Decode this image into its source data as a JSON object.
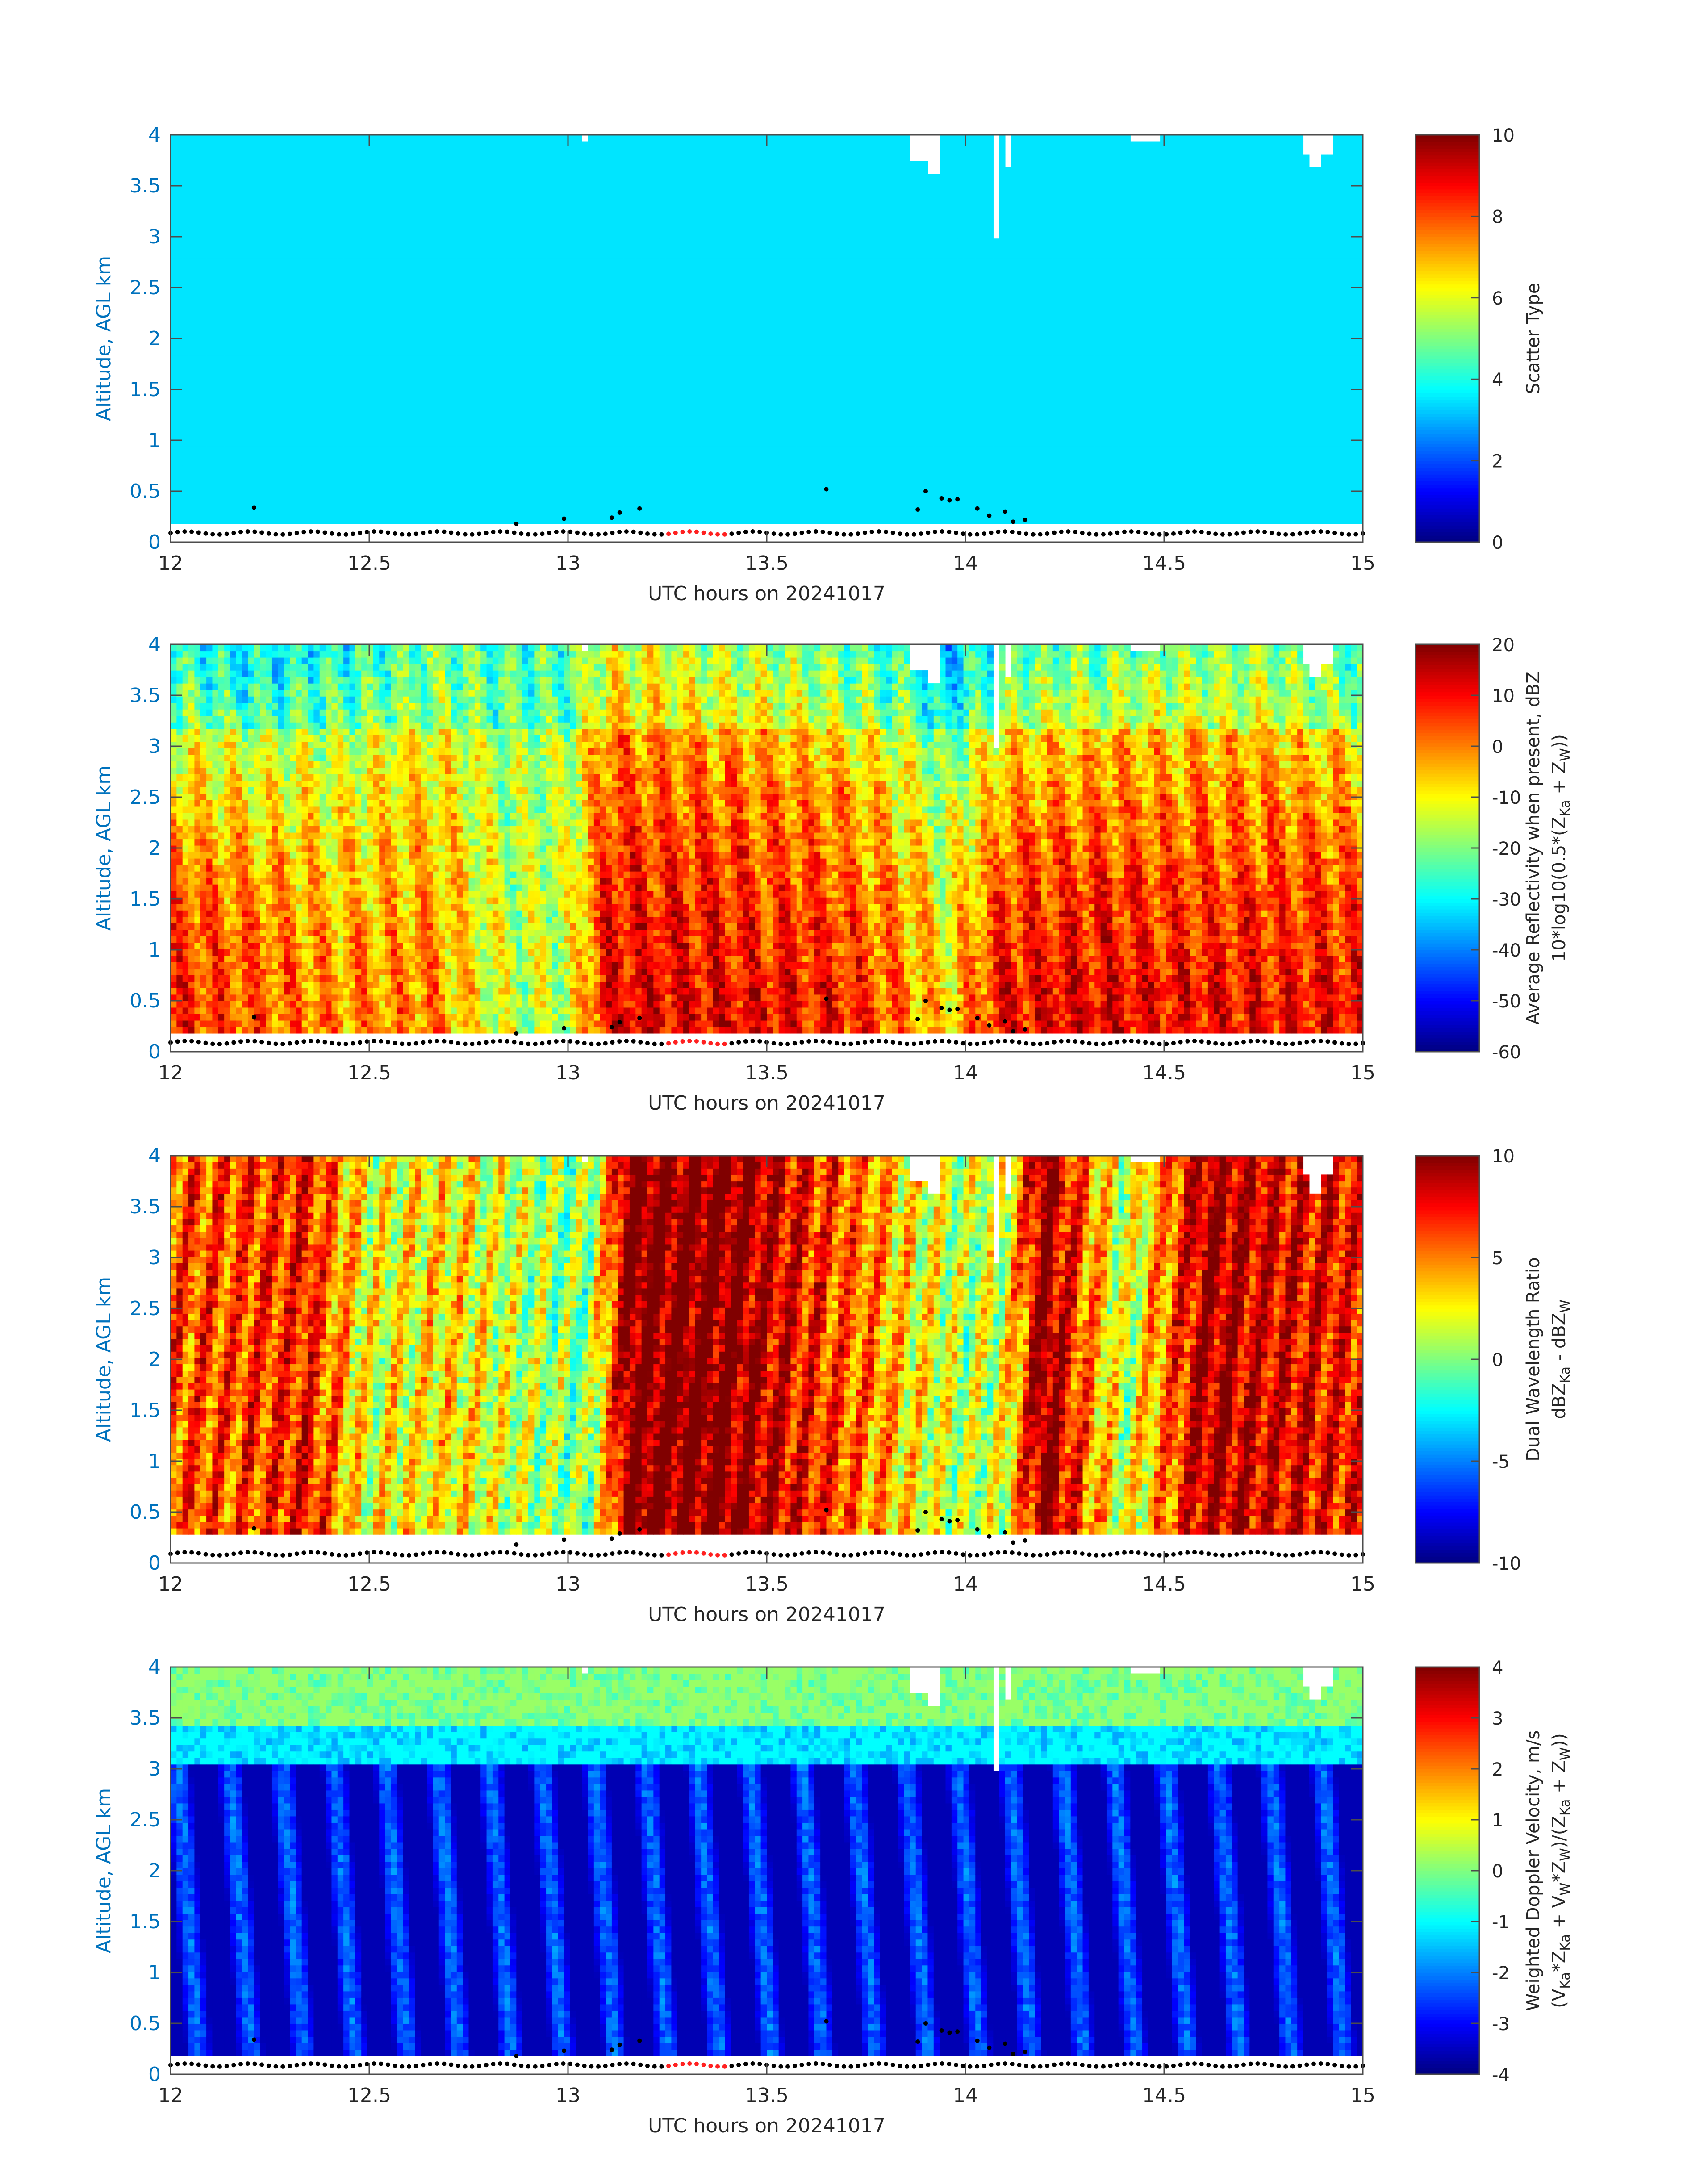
{
  "chart_data": [
    {
      "type": "heatmap",
      "variable": "scatter_type",
      "xlabel": "UTC hours on 20241017",
      "ylabel": "Altitude, AGL km",
      "xlim": [
        12,
        15
      ],
      "ylim": [
        0,
        4
      ],
      "xticks": [
        "12",
        "12.5",
        "13",
        "13.5",
        "14",
        "14.5",
        "15"
      ],
      "yticks": [
        "0",
        "0.5",
        "1",
        "1.5",
        "2",
        "2.5",
        "3",
        "3.5",
        "4"
      ],
      "colorbar": {
        "label_lines": [
          "Scatter Type"
        ],
        "min": 0,
        "max": 10,
        "ticks": [
          "0",
          "2",
          "4",
          "6",
          "8",
          "10"
        ],
        "colormap": "jet"
      },
      "data_bottom_km": 0.18,
      "uniform_value": 3.5
    },
    {
      "type": "heatmap",
      "variable": "reflectivity",
      "xlabel": "UTC hours on 20241017",
      "ylabel": "Altitude, AGL km",
      "xlim": [
        12,
        15
      ],
      "ylim": [
        0,
        4
      ],
      "xticks": [
        "12",
        "12.5",
        "13",
        "13.5",
        "14",
        "14.5",
        "15"
      ],
      "yticks": [
        "0",
        "0.5",
        "1",
        "1.5",
        "2",
        "2.5",
        "3",
        "3.5",
        "4"
      ],
      "colorbar": {
        "label_lines": [
          "Average Reflectivity when present, dBZ",
          "10*log10(0.5*(Z",
          "Ka",
          " + Z",
          "W",
          "))"
        ],
        "min": -60,
        "max": 20,
        "ticks": [
          "-60",
          "-50",
          "-40",
          "-30",
          "-20",
          "-10",
          "0",
          "10",
          "20"
        ],
        "colormap": "jet"
      },
      "data_bottom_km": 0.18,
      "time_profile_hours": [
        12.0,
        12.2,
        12.45,
        12.65,
        12.85,
        13.0,
        13.1,
        13.3,
        13.5,
        13.7,
        13.85,
        13.95,
        14.1,
        14.3,
        14.5,
        14.7,
        14.9,
        15.0
      ],
      "low_level_dbz": [
        8,
        4,
        -2,
        0,
        -15,
        -14,
        12,
        12,
        10,
        8,
        0,
        -8,
        10,
        12,
        10,
        10,
        10,
        10
      ],
      "upper_level_dbz": [
        -22,
        -26,
        -22,
        -16,
        -18,
        -18,
        -6,
        -10,
        -12,
        -16,
        -22,
        -30,
        -18,
        -16,
        -14,
        -14,
        -18,
        -20
      ]
    },
    {
      "type": "heatmap",
      "variable": "dual_wavelength_ratio",
      "xlabel": "UTC hours on 20241017",
      "ylabel": "Altitude, AGL km",
      "xlim": [
        12,
        15
      ],
      "ylim": [
        0,
        4
      ],
      "xticks": [
        "12",
        "12.5",
        "13",
        "13.5",
        "14",
        "14.5",
        "15"
      ],
      "yticks": [
        "0",
        "0.5",
        "1",
        "1.5",
        "2",
        "2.5",
        "3",
        "3.5",
        "4"
      ],
      "colorbar": {
        "label_lines": [
          "Dual Wavelength Ratio",
          "dBZ",
          "Ka",
          " - dBZ",
          "W"
        ],
        "min": -10,
        "max": 10,
        "ticks": [
          "-10",
          "-5",
          "0",
          "5",
          "10"
        ],
        "colormap": "jet"
      },
      "data_bottom_km": 0.28,
      "time_profile_hours": [
        12.0,
        12.15,
        12.35,
        12.5,
        12.7,
        12.9,
        13.05,
        13.15,
        13.4,
        13.75,
        13.85,
        14.0,
        14.1,
        14.2,
        14.4,
        14.6,
        14.8,
        15.0
      ],
      "dwr_db": [
        6,
        6,
        7,
        2,
        3,
        1,
        0,
        10,
        10,
        5,
        3,
        1,
        2,
        10,
        1,
        9,
        8,
        7
      ]
    },
    {
      "type": "heatmap",
      "variable": "doppler_velocity",
      "xlabel": "UTC hours on 20241017",
      "ylabel": "Altitude, AGL km",
      "xlim": [
        12,
        15
      ],
      "ylim": [
        0,
        4
      ],
      "xticks": [
        "12",
        "12.5",
        "13",
        "13.5",
        "14",
        "14.5",
        "15"
      ],
      "yticks": [
        "0",
        "0.5",
        "1",
        "1.5",
        "2",
        "2.5",
        "3",
        "3.5",
        "4"
      ],
      "colorbar": {
        "label_lines": [
          "Weighted Doppler Velocity, m/s",
          "(V",
          "Ka",
          "*Z",
          "Ka",
          " + V",
          "W",
          "*Z",
          "W",
          ")/(Z",
          "Ka",
          " + Z",
          "W",
          "))"
        ],
        "min": -4,
        "max": 4,
        "ticks": [
          "-4",
          "-3",
          "-2",
          "-1",
          "0",
          "1",
          "2",
          "3",
          "4"
        ],
        "colormap": "jet"
      },
      "data_bottom_km": 0.18,
      "upper_velocity_ms": 0.2,
      "lower_velocity_ms": -3.6,
      "transition_km": 3.05
    }
  ],
  "ground_markers": {
    "black_dot_altitude_km": 0.09,
    "red_segment_hours": [
      13.24,
      13.4
    ],
    "scattered_points": [
      {
        "t": 12.21,
        "z": 0.34
      },
      {
        "t": 12.87,
        "z": 0.18
      },
      {
        "t": 12.99,
        "z": 0.23
      },
      {
        "t": 13.11,
        "z": 0.24
      },
      {
        "t": 13.13,
        "z": 0.29
      },
      {
        "t": 13.18,
        "z": 0.33
      },
      {
        "t": 13.65,
        "z": 0.52
      },
      {
        "t": 13.88,
        "z": 0.32
      },
      {
        "t": 13.9,
        "z": 0.5
      },
      {
        "t": 13.94,
        "z": 0.43
      },
      {
        "t": 13.96,
        "z": 0.41
      },
      {
        "t": 13.98,
        "z": 0.42
      },
      {
        "t": 14.03,
        "z": 0.33
      },
      {
        "t": 14.06,
        "z": 0.26
      },
      {
        "t": 14.1,
        "z": 0.3
      },
      {
        "t": 14.12,
        "z": 0.2
      },
      {
        "t": 14.15,
        "z": 0.22
      }
    ]
  },
  "colors": {
    "axis_blue": "#0072bd",
    "text_dark": "#262626",
    "tick_grey": "#4d4d4d",
    "red_marker": "#ff2020",
    "black_marker": "#000000"
  }
}
